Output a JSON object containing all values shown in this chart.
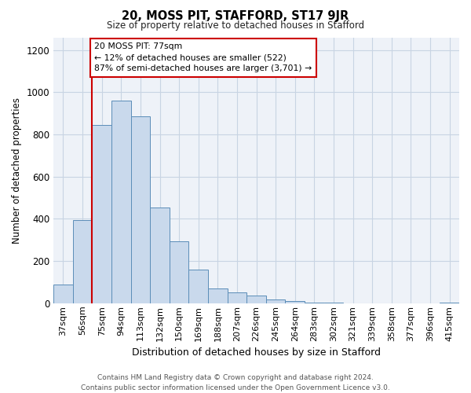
{
  "title": "20, MOSS PIT, STAFFORD, ST17 9JR",
  "subtitle": "Size of property relative to detached houses in Stafford",
  "xlabel": "Distribution of detached houses by size in Stafford",
  "ylabel": "Number of detached properties",
  "footer_line1": "Contains HM Land Registry data © Crown copyright and database right 2024.",
  "footer_line2": "Contains public sector information licensed under the Open Government Licence v3.0.",
  "categories": [
    "37sqm",
    "56sqm",
    "75sqm",
    "94sqm",
    "113sqm",
    "132sqm",
    "150sqm",
    "169sqm",
    "188sqm",
    "207sqm",
    "226sqm",
    "245sqm",
    "264sqm",
    "283sqm",
    "302sqm",
    "321sqm",
    "339sqm",
    "358sqm",
    "377sqm",
    "396sqm",
    "415sqm"
  ],
  "values": [
    90,
    395,
    845,
    960,
    885,
    455,
    295,
    160,
    70,
    50,
    35,
    18,
    10,
    5,
    5,
    1,
    1,
    1,
    0,
    0,
    5
  ],
  "bar_color": "#c9d9ec",
  "bar_edge_color": "#5b8db8",
  "grid_color": "#c8d4e3",
  "background_color": "#eef2f8",
  "annotation_text": "20 MOSS PIT: 77sqm\n← 12% of detached houses are smaller (522)\n87% of semi-detached houses are larger (3,701) →",
  "annotation_box_edge_color": "#cc0000",
  "vline_color": "#cc0000",
  "vline_x": 1.5,
  "ylim": [
    0,
    1260
  ],
  "yticks": [
    0,
    200,
    400,
    600,
    800,
    1000,
    1200
  ]
}
